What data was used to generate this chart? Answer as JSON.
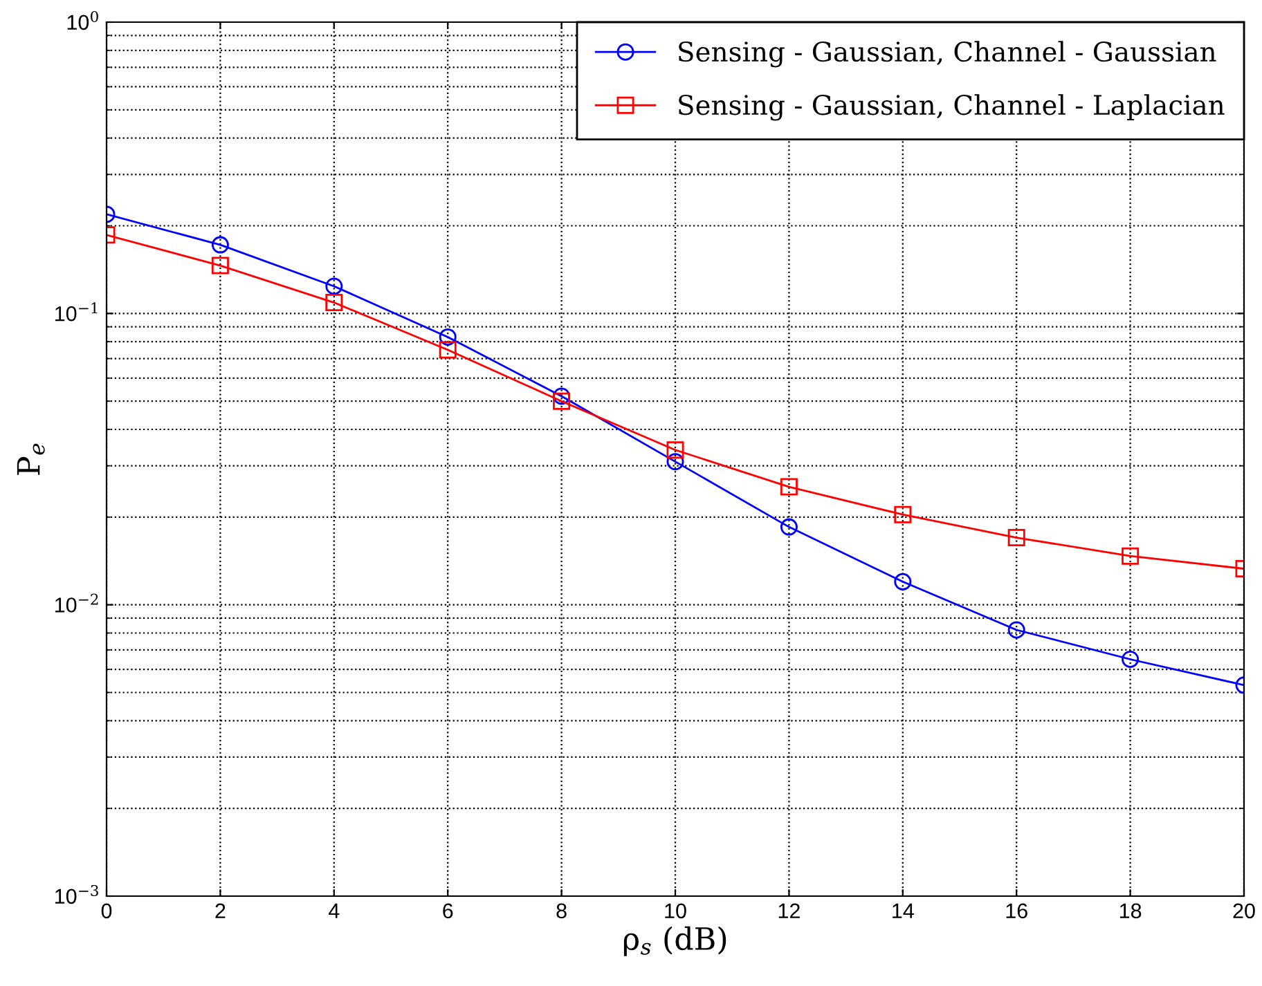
{
  "chart_data": {
    "type": "line",
    "xlabel": "ρ$_{s}$ (dB)",
    "ylabel": "P$_{e}$",
    "log": "y",
    "grid": true,
    "legend": "top right",
    "line_style": "solid",
    "x": [
      0,
      2,
      4,
      6,
      8,
      10,
      12,
      14,
      16,
      18,
      20
    ],
    "xlim": [
      0,
      20
    ],
    "xticks": [
      0,
      2,
      4,
      6,
      8,
      10,
      12,
      14,
      16,
      18,
      20
    ],
    "ylim": [
      0.001,
      1
    ],
    "yticks": [
      {
        "value": 0.001,
        "label": "10$^{−3}$"
      },
      {
        "value": 0.01,
        "label": "10$^{−2}$"
      },
      {
        "value": 0.1,
        "label": "10$^{−1}$"
      },
      {
        "value": 1,
        "label": "10$^{0}$"
      }
    ],
    "series": [
      {
        "name": "Sensing - Gaussian, Channel - Gaussian",
        "color": "#0000ff",
        "marker": "circle",
        "values": [
          0.219,
          0.172,
          0.124,
          0.083,
          0.052,
          0.031,
          0.0185,
          0.012,
          0.0082,
          0.0065,
          0.0053
        ]
      },
      {
        "name": "Sensing - Gaussian, Channel - Laplacian",
        "color": "#ff0000",
        "marker": "square",
        "values": [
          0.186,
          0.146,
          0.109,
          0.075,
          0.05,
          0.034,
          0.0254,
          0.0204,
          0.017,
          0.0147,
          0.0133
        ]
      }
    ]
  }
}
